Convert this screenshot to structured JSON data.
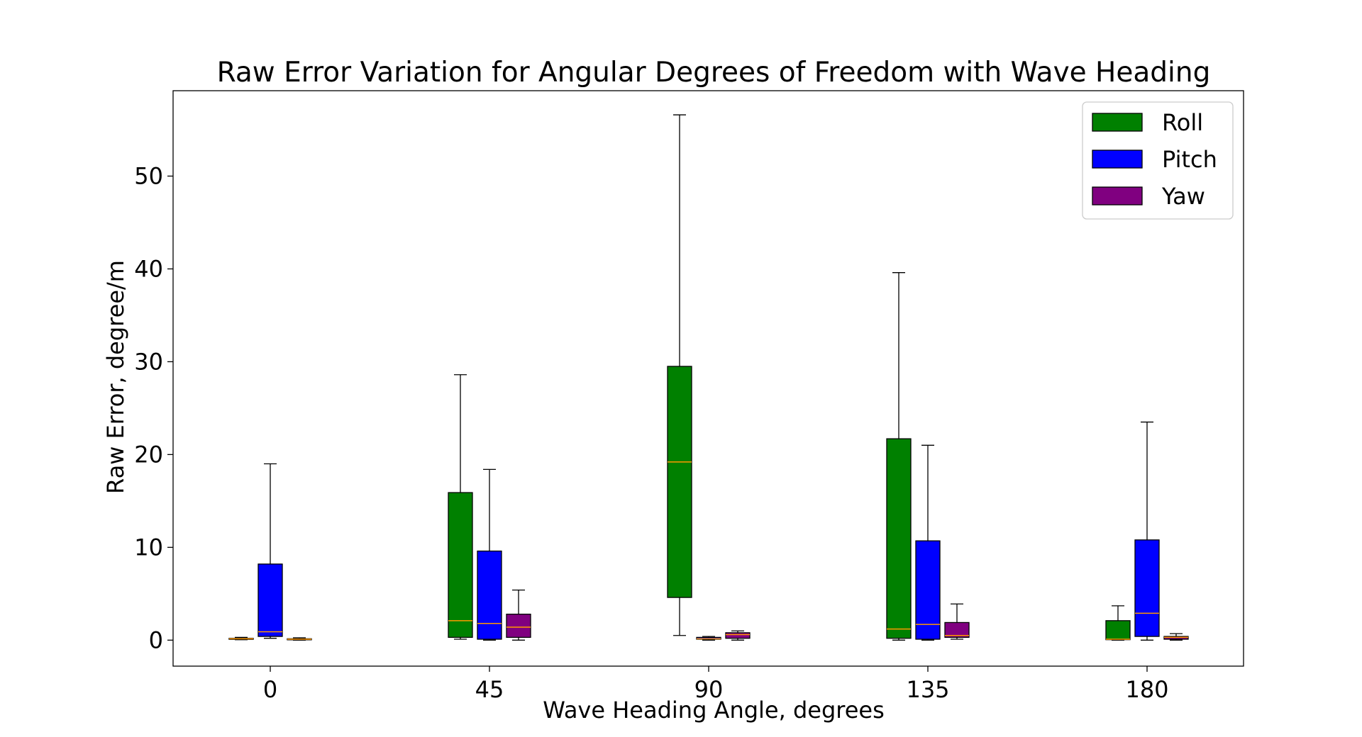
{
  "chart_data": {
    "type": "box",
    "title": "Raw Error Variation for Angular Degrees of Freedom with Wave Heading",
    "xlabel": "Wave Heading Angle, degrees",
    "ylabel": "Raw Error, degree/m",
    "categories": [
      "0",
      "45",
      "90",
      "135",
      "180"
    ],
    "ylim": [
      -2.8,
      59.2
    ],
    "yticks": [
      0,
      10,
      20,
      30,
      40,
      50
    ],
    "ytick_labels": [
      "0",
      "10",
      "20",
      "30",
      "40",
      "50"
    ],
    "legend_position": "top-right",
    "grid": false,
    "median_color": "#ff9900",
    "series": [
      {
        "name": "Roll",
        "color": "#008000",
        "boxes": [
          {
            "whisker_low": 0.05,
            "q1": 0.1,
            "median": 0.15,
            "q3": 0.2,
            "whisker_high": 0.3
          },
          {
            "whisker_low": 0.1,
            "q1": 0.3,
            "median": 2.1,
            "q3": 15.9,
            "whisker_high": 28.6
          },
          {
            "whisker_low": 0.5,
            "q1": 4.6,
            "median": 19.2,
            "q3": 29.5,
            "whisker_high": 56.6
          },
          {
            "whisker_low": 0.0,
            "q1": 0.2,
            "median": 1.2,
            "q3": 21.7,
            "whisker_high": 39.6
          },
          {
            "whisker_low": 0.0,
            "q1": 0.05,
            "median": 0.1,
            "q3": 2.1,
            "whisker_high": 3.7
          }
        ]
      },
      {
        "name": "Pitch",
        "color": "#0000ff",
        "boxes": [
          {
            "whisker_low": 0.2,
            "q1": 0.4,
            "median": 0.9,
            "q3": 8.2,
            "whisker_high": 19.0
          },
          {
            "whisker_low": 0.0,
            "q1": 0.1,
            "median": 1.8,
            "q3": 9.6,
            "whisker_high": 18.4
          },
          {
            "whisker_low": 0.0,
            "q1": 0.1,
            "median": 0.15,
            "q3": 0.3,
            "whisker_high": 0.4
          },
          {
            "whisker_low": 0.0,
            "q1": 0.1,
            "median": 1.7,
            "q3": 10.7,
            "whisker_high": 21.0
          },
          {
            "whisker_low": 0.0,
            "q1": 0.4,
            "median": 2.9,
            "q3": 10.8,
            "whisker_high": 23.5
          }
        ]
      },
      {
        "name": "Yaw",
        "color": "#800080",
        "boxes": [
          {
            "whisker_low": 0.0,
            "q1": 0.05,
            "median": 0.1,
            "q3": 0.15,
            "whisker_high": 0.25
          },
          {
            "whisker_low": 0.0,
            "q1": 0.3,
            "median": 1.4,
            "q3": 2.8,
            "whisker_high": 5.4
          },
          {
            "whisker_low": 0.0,
            "q1": 0.2,
            "median": 0.6,
            "q3": 0.8,
            "whisker_high": 1.0
          },
          {
            "whisker_low": 0.1,
            "q1": 0.3,
            "median": 0.5,
            "q3": 1.9,
            "whisker_high": 3.9
          },
          {
            "whisker_low": 0.0,
            "q1": 0.1,
            "median": 0.3,
            "q3": 0.4,
            "whisker_high": 0.7
          }
        ]
      }
    ]
  }
}
